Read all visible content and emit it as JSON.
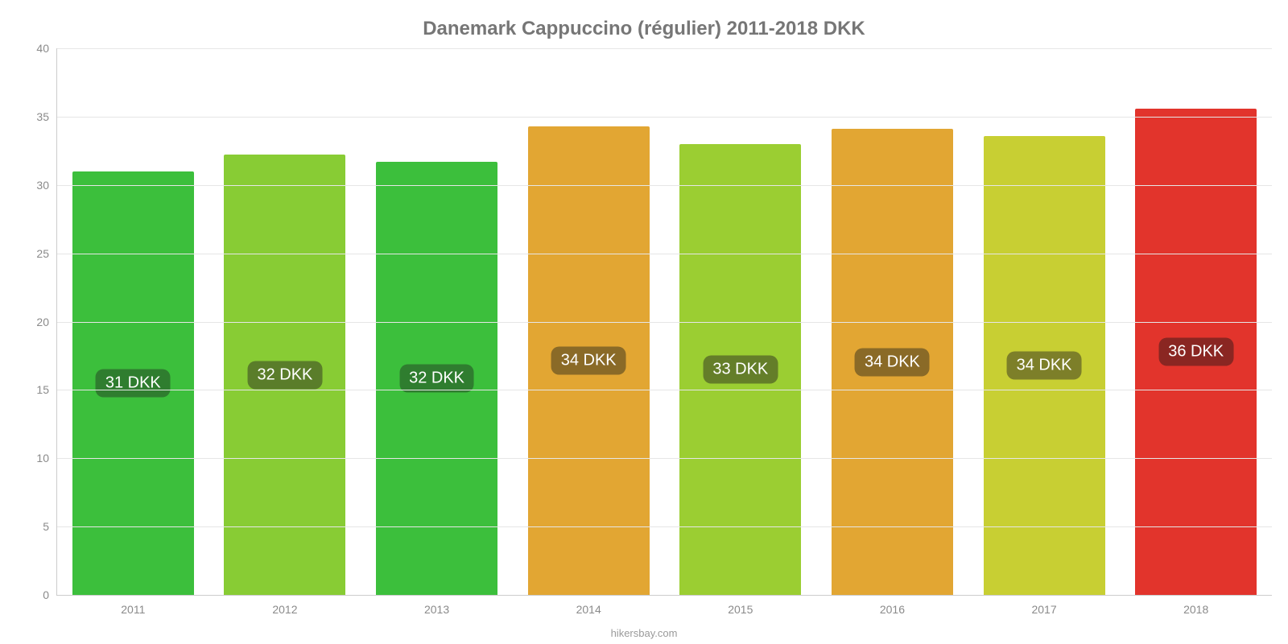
{
  "chart": {
    "type": "bar",
    "title": "Danemark Cappuccino (régulier) 2011-2018 DKK",
    "title_fontsize": 24,
    "title_color": "#767676",
    "background_color": "#ffffff",
    "axis_color": "#cccccc",
    "grid_color": "#e6e6e6",
    "tick_label_color": "#8a8a8a",
    "tick_label_fontsize": 14,
    "categories": [
      "2011",
      "2012",
      "2013",
      "2014",
      "2015",
      "2016",
      "2017",
      "2018"
    ],
    "values": [
      31.0,
      32.2,
      31.7,
      34.3,
      33.0,
      34.1,
      33.6,
      35.6
    ],
    "value_labels": [
      "31 DKK",
      "32 DKK",
      "32 DKK",
      "34 DKK",
      "33 DKK",
      "34 DKK",
      "34 DKK",
      "36 DKK"
    ],
    "bar_colors": [
      "#3cbf3c",
      "#88cc34",
      "#3cbf3c",
      "#e2a633",
      "#9bce32",
      "#e2a633",
      "#c8cf33",
      "#e2342c"
    ],
    "label_bg_colors": [
      "#2f7d2f",
      "#5a7d2a",
      "#2f7d2f",
      "#8a6a27",
      "#647e29",
      "#8a6a27",
      "#7d7f29",
      "#8a2622"
    ],
    "label_text_color": "#ffffff",
    "label_fontsize": 20,
    "bar_width_pct": 80,
    "ylim": [
      0,
      40
    ],
    "yticks": [
      0,
      5,
      10,
      15,
      20,
      25,
      30,
      35,
      40
    ],
    "credit": "hikersbay.com",
    "credit_color": "#9a9a9a"
  }
}
